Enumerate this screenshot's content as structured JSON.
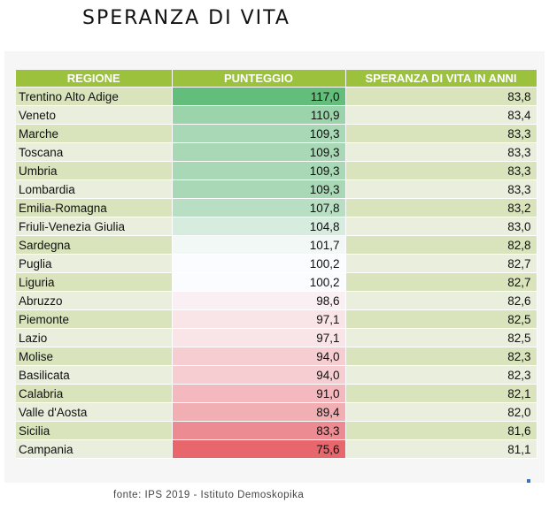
{
  "title": "SPERANZA DI VITA",
  "table": {
    "headers": [
      "REGIONE",
      "PUNTEGGIO",
      "SPERANZA DI VITA IN ANNI"
    ],
    "rows": [
      {
        "region": "Trentino Alto Adige",
        "score": "117,0",
        "life": "83,8",
        "color": "#63be7b"
      },
      {
        "region": "Veneto",
        "score": "110,9",
        "life": "83,4",
        "color": "#9bd3ab"
      },
      {
        "region": "Marche",
        "score": "109,3",
        "life": "83,3",
        "color": "#a8d8b6"
      },
      {
        "region": "Toscana",
        "score": "109,3",
        "life": "83,3",
        "color": "#a8d8b6"
      },
      {
        "region": "Umbria",
        "score": "109,3",
        "life": "83,3",
        "color": "#a8d8b6"
      },
      {
        "region": "Lombardia",
        "score": "109,3",
        "life": "83,3",
        "color": "#a8d8b6"
      },
      {
        "region": "Emilia-Romagna",
        "score": "107,8",
        "life": "83,2",
        "color": "#b8dfc4"
      },
      {
        "region": "Friuli-Venezia Giulia",
        "score": "104,8",
        "life": "83,0",
        "color": "#d6ecdf"
      },
      {
        "region": "Sardegna",
        "score": "101,7",
        "life": "82,8",
        "color": "#f1f8f5"
      },
      {
        "region": "Puglia",
        "score": "100,2",
        "life": "82,7",
        "color": "#fbfcff"
      },
      {
        "region": "Liguria",
        "score": "100,2",
        "life": "82,7",
        "color": "#fbfcff"
      },
      {
        "region": "Abruzzo",
        "score": "98,6",
        "life": "82,6",
        "color": "#faeff2"
      },
      {
        "region": "Piemonte",
        "score": "97,1",
        "life": "82,5",
        "color": "#f9e4e7"
      },
      {
        "region": "Lazio",
        "score": "97,1",
        "life": "82,5",
        "color": "#f9e4e7"
      },
      {
        "region": "Molise",
        "score": "94,0",
        "life": "82,3",
        "color": "#f6ced2"
      },
      {
        "region": "Basilicata",
        "score": "94,0",
        "life": "82,3",
        "color": "#f6ced2"
      },
      {
        "region": "Calabria",
        "score": "91,0",
        "life": "82,1",
        "color": "#f3b9be"
      },
      {
        "region": "Valle d'Aosta",
        "score": "89,4",
        "life": "82,0",
        "color": "#f1aeb3"
      },
      {
        "region": "Sicilia",
        "score": "83,3",
        "life": "81,6",
        "color": "#ec8b91"
      },
      {
        "region": "Campania",
        "score": "75,6",
        "life": "81,1",
        "color": "#e8676d"
      }
    ]
  },
  "source": "fonte: IPS 2019 - Istituto Demoskopika",
  "colors": {
    "header_bg": "#9bc13d",
    "row_odd": "#d9e4bd",
    "row_even": "#e9efdc"
  }
}
